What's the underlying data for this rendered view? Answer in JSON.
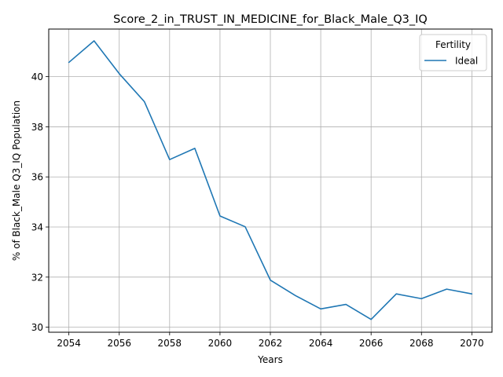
{
  "chart_data": {
    "type": "line",
    "title": "Score_2_in_TRUST_IN_MEDICINE_for_Black_Male_Q3_IQ",
    "xlabel": "Years",
    "ylabel": "% of Black_Male Q3_IQ Population",
    "xlim": [
      2053.2,
      2070.8
    ],
    "ylim": [
      29.8,
      41.9
    ],
    "x_ticks": [
      2054,
      2056,
      2058,
      2060,
      2062,
      2064,
      2066,
      2068,
      2070
    ],
    "y_ticks": [
      30,
      32,
      34,
      36,
      38,
      40
    ],
    "grid": true,
    "legend": {
      "title": "Fertility",
      "position": "top-right"
    },
    "series": [
      {
        "name": "Ideal",
        "color": "#1f77b4",
        "x": [
          2054,
          2055,
          2056,
          2057,
          2058,
          2059,
          2060,
          2061,
          2062,
          2063,
          2064,
          2065,
          2066,
          2067,
          2068,
          2069,
          2070
        ],
        "y": [
          40.57,
          41.43,
          40.12,
          39.0,
          36.69,
          37.14,
          34.44,
          34.01,
          31.88,
          31.26,
          30.73,
          30.91,
          30.31,
          31.33,
          31.14,
          31.52,
          31.33
        ]
      }
    ]
  }
}
